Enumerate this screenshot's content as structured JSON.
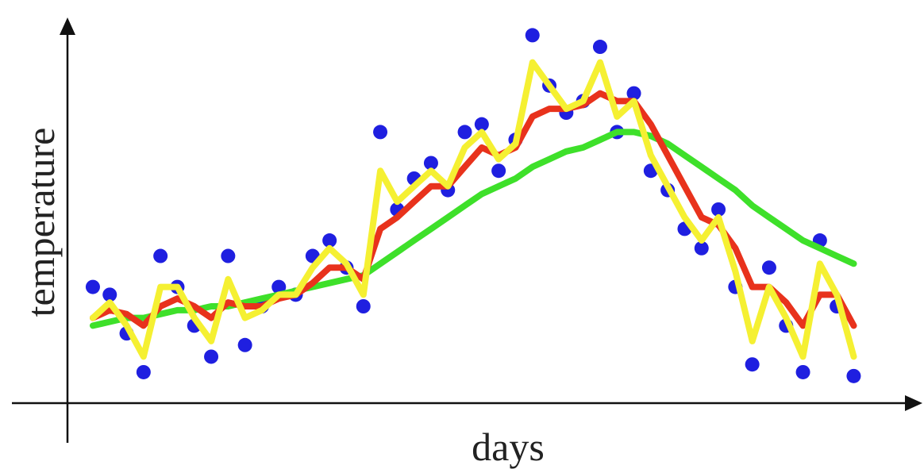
{
  "chart_data": {
    "type": "line",
    "x_label": "days",
    "y_label": "temperature",
    "xlim": [
      0,
      100
    ],
    "ylim": [
      0,
      100
    ],
    "x": [
      3,
      5,
      7,
      9,
      11,
      13,
      15,
      17,
      19,
      21,
      23,
      25,
      27,
      29,
      31,
      33,
      35,
      37,
      39,
      41,
      43,
      45,
      47,
      49,
      51,
      53,
      55,
      57,
      59,
      61,
      63,
      65,
      67,
      69,
      71,
      73,
      75,
      77,
      79,
      81,
      83,
      85,
      87,
      89,
      91,
      93
    ],
    "series": [
      {
        "type": "scatter",
        "color": "#1f1fe0",
        "values": [
          30,
          28,
          18,
          8,
          38,
          30,
          20,
          12,
          38,
          15,
          25,
          30,
          28,
          38,
          42,
          35,
          25,
          70,
          50,
          58,
          62,
          55,
          70,
          72,
          60,
          68,
          95,
          82,
          75,
          78,
          92,
          70,
          80,
          60,
          55,
          45,
          40,
          50,
          30,
          10,
          35,
          20,
          8,
          42,
          25,
          7
        ]
      },
      {
        "color": "#3ee02a",
        "values": [
          20,
          21,
          22,
          22,
          23,
          24,
          24,
          25,
          25,
          26,
          27,
          28,
          29,
          30,
          31,
          32,
          33,
          36,
          39,
          42,
          45,
          48,
          51,
          54,
          56,
          58,
          61,
          63,
          65,
          66,
          68,
          70,
          70,
          69,
          67,
          64,
          61,
          58,
          55,
          51,
          48,
          45,
          42,
          40,
          38,
          36
        ]
      },
      {
        "color": "#e8321c",
        "values": [
          22,
          24,
          23,
          20,
          25,
          27,
          25,
          22,
          26,
          25,
          25,
          27,
          28,
          31,
          35,
          35,
          32,
          45,
          48,
          52,
          56,
          56,
          61,
          66,
          64,
          66,
          74,
          76,
          76,
          77,
          80,
          78,
          78,
          72,
          64,
          56,
          48,
          46,
          40,
          30,
          30,
          26,
          20,
          28,
          28,
          20
        ]
      },
      {
        "color": "#f5f032",
        "values": [
          22,
          26,
          20,
          12,
          30,
          30,
          22,
          16,
          32,
          22,
          24,
          28,
          28,
          35,
          40,
          36,
          28,
          60,
          52,
          56,
          60,
          56,
          66,
          70,
          63,
          67,
          88,
          82,
          76,
          78,
          88,
          74,
          78,
          64,
          56,
          48,
          42,
          48,
          34,
          16,
          30,
          22,
          12,
          36,
          28,
          12
        ]
      }
    ]
  }
}
